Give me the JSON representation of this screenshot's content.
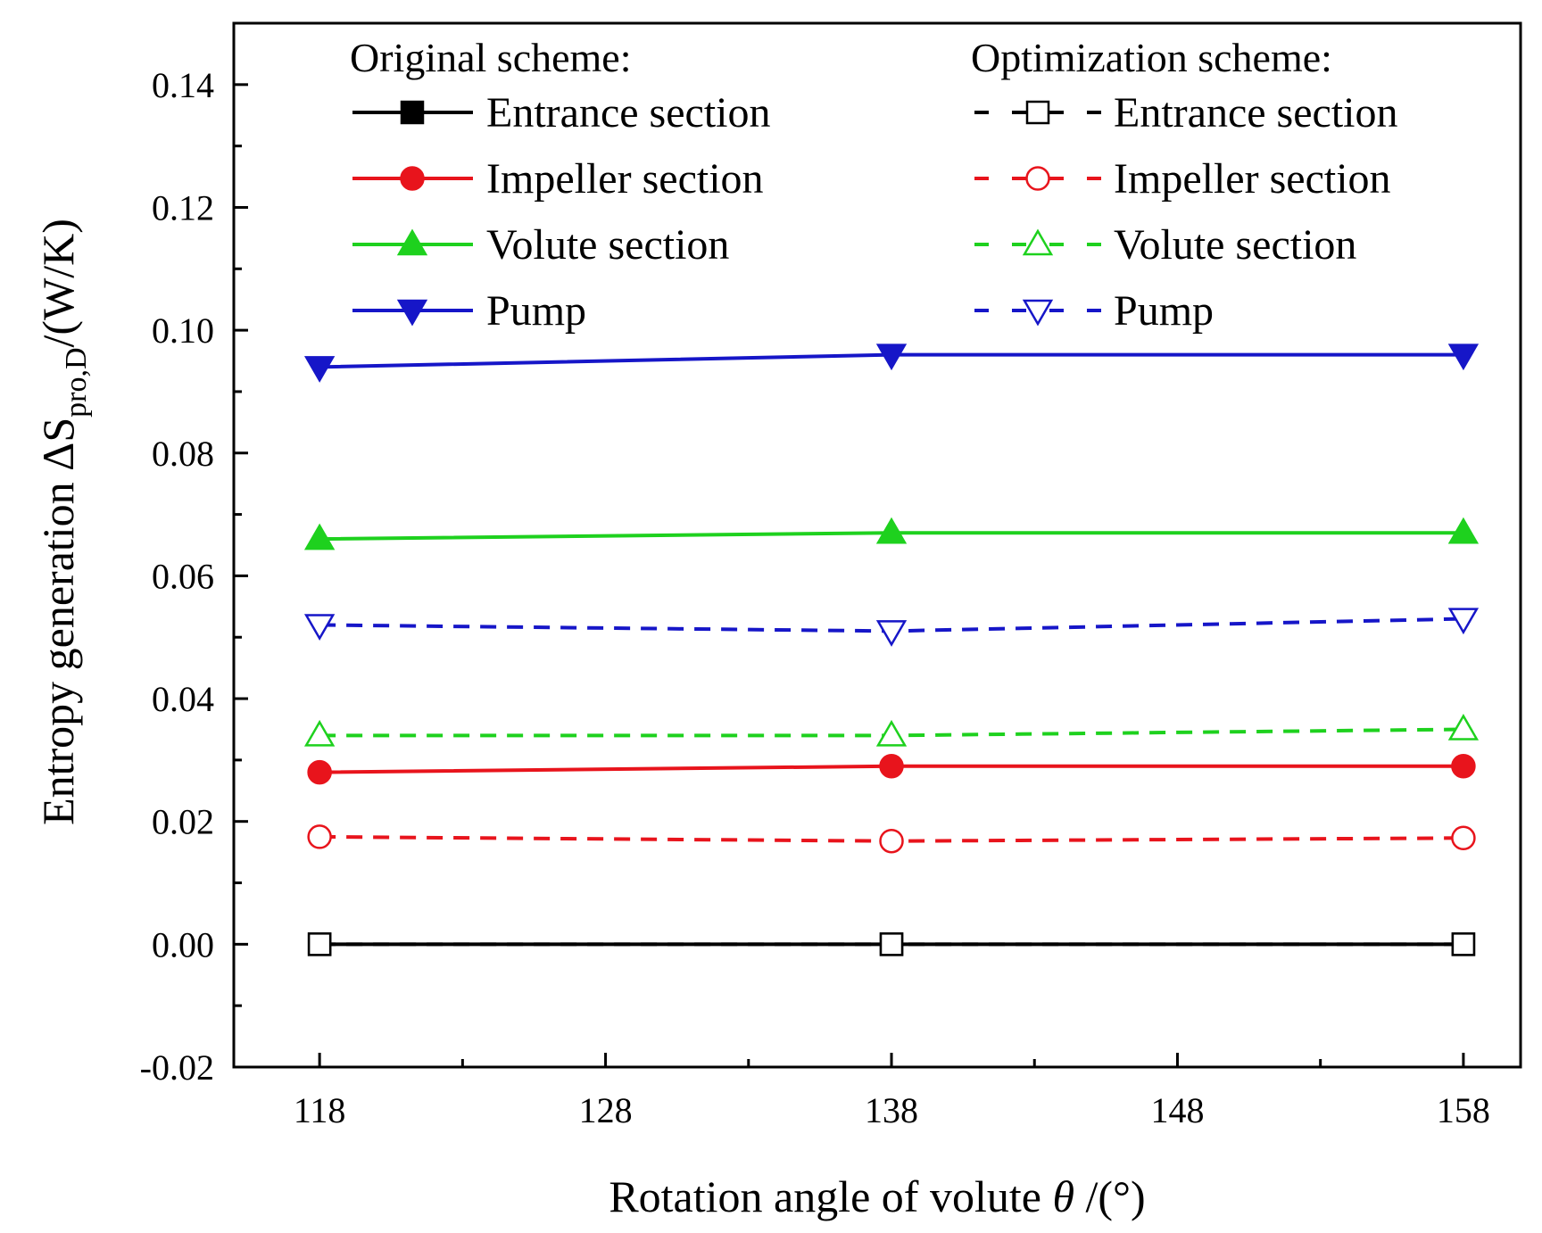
{
  "chart_data": {
    "type": "line",
    "title": "",
    "xlabel": {
      "prefix": "Rotation angle of volute ",
      "symbol": "θ",
      "suffix": " /(°)"
    },
    "ylabel": {
      "prefix": "Entropy generation ΔS",
      "subscript": "pro,D",
      "suffix": "/(W/K)"
    },
    "xlim": [
      115,
      160
    ],
    "ylim": [
      -0.02,
      0.15
    ],
    "xticks": [
      "118",
      "128",
      "138",
      "148",
      "158"
    ],
    "yticks": [
      "-0.02",
      "0.00",
      "0.02",
      "0.04",
      "0.06",
      "0.08",
      "0.10",
      "0.12",
      "0.14"
    ],
    "x": [
      118,
      138,
      158
    ],
    "legend": {
      "original_heading": "Original scheme:",
      "optimization_heading": "Optimization scheme:",
      "placement": "top"
    },
    "series": [
      {
        "name": "Entrance section",
        "group": "original",
        "color": "#000000",
        "dash": "solid",
        "marker": "square",
        "filled": true,
        "values": [
          0.0,
          0.0,
          0.0
        ]
      },
      {
        "name": "Impeller section",
        "group": "original",
        "color": "#e8141c",
        "dash": "solid",
        "marker": "circle",
        "filled": true,
        "values": [
          0.028,
          0.029,
          0.029
        ]
      },
      {
        "name": "Volute section",
        "group": "original",
        "color": "#1ed11e",
        "dash": "solid",
        "marker": "triangle-up",
        "filled": true,
        "values": [
          0.066,
          0.067,
          0.067
        ]
      },
      {
        "name": "Pump",
        "group": "original",
        "color": "#1616c8",
        "dash": "solid",
        "marker": "triangle-down",
        "filled": true,
        "values": [
          0.094,
          0.096,
          0.096
        ]
      },
      {
        "name": "Entrance section",
        "group": "optimization",
        "color": "#000000",
        "dash": "dashed",
        "marker": "square",
        "filled": false,
        "values": [
          0.0,
          0.0,
          0.0
        ]
      },
      {
        "name": "Impeller section",
        "group": "optimization",
        "color": "#e8141c",
        "dash": "dashed",
        "marker": "circle",
        "filled": false,
        "values": [
          0.0175,
          0.0168,
          0.0173
        ]
      },
      {
        "name": "Volute section",
        "group": "optimization",
        "color": "#1ed11e",
        "dash": "dashed",
        "marker": "triangle-up",
        "filled": false,
        "values": [
          0.034,
          0.034,
          0.035
        ]
      },
      {
        "name": "Pump",
        "group": "optimization",
        "color": "#1616c8",
        "dash": "dashed",
        "marker": "triangle-down",
        "filled": false,
        "values": [
          0.052,
          0.051,
          0.053
        ]
      }
    ]
  }
}
